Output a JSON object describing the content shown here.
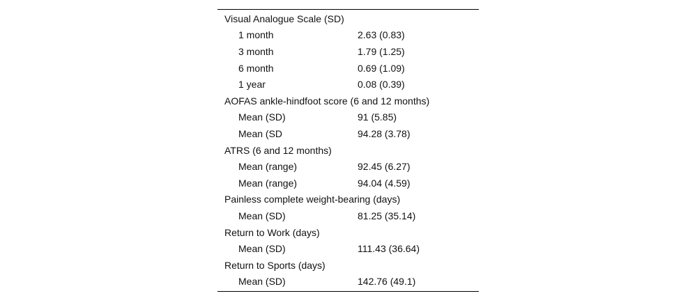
{
  "colors": {
    "background": "#ffffff",
    "text": "#111111",
    "rule": "#000000"
  },
  "table": {
    "rows": [
      {
        "type": "section",
        "label": "Visual Analogue Scale (SD)",
        "value": ""
      },
      {
        "type": "item",
        "label": "1 month",
        "value": "2.63 (0.83)"
      },
      {
        "type": "item",
        "label": "3 month",
        "value": "1.79 (1.25)"
      },
      {
        "type": "item",
        "label": "6 month",
        "value": "0.69 (1.09)"
      },
      {
        "type": "item",
        "label": "1 year",
        "value": "0.08 (0.39)"
      },
      {
        "type": "section",
        "label": "AOFAS ankle-hindfoot score (6 and 12 months)",
        "value": ""
      },
      {
        "type": "item",
        "label": "Mean (SD)",
        "value": "91 (5.85)"
      },
      {
        "type": "item",
        "label": "Mean (SD",
        "value": "94.28 (3.78)"
      },
      {
        "type": "section",
        "label": "ATRS (6 and 12 months)",
        "value": ""
      },
      {
        "type": "item",
        "label": "Mean (range)",
        "value": "92.45 (6.27)"
      },
      {
        "type": "item",
        "label": "Mean (range)",
        "value": "94.04 (4.59)"
      },
      {
        "type": "section",
        "label": "Painless complete weight-bearing (days)",
        "value": ""
      },
      {
        "type": "item",
        "label": "Mean (SD)",
        "value": "81.25 (35.14)"
      },
      {
        "type": "section",
        "label": "Return to Work (days)",
        "value": ""
      },
      {
        "type": "item",
        "label": "Mean (SD)",
        "value": "111.43 (36.64)"
      },
      {
        "type": "section",
        "label": "Return to Sports (days)",
        "value": ""
      },
      {
        "type": "item",
        "label": "Mean (SD)",
        "value": "142.76 (49.1)"
      }
    ]
  }
}
